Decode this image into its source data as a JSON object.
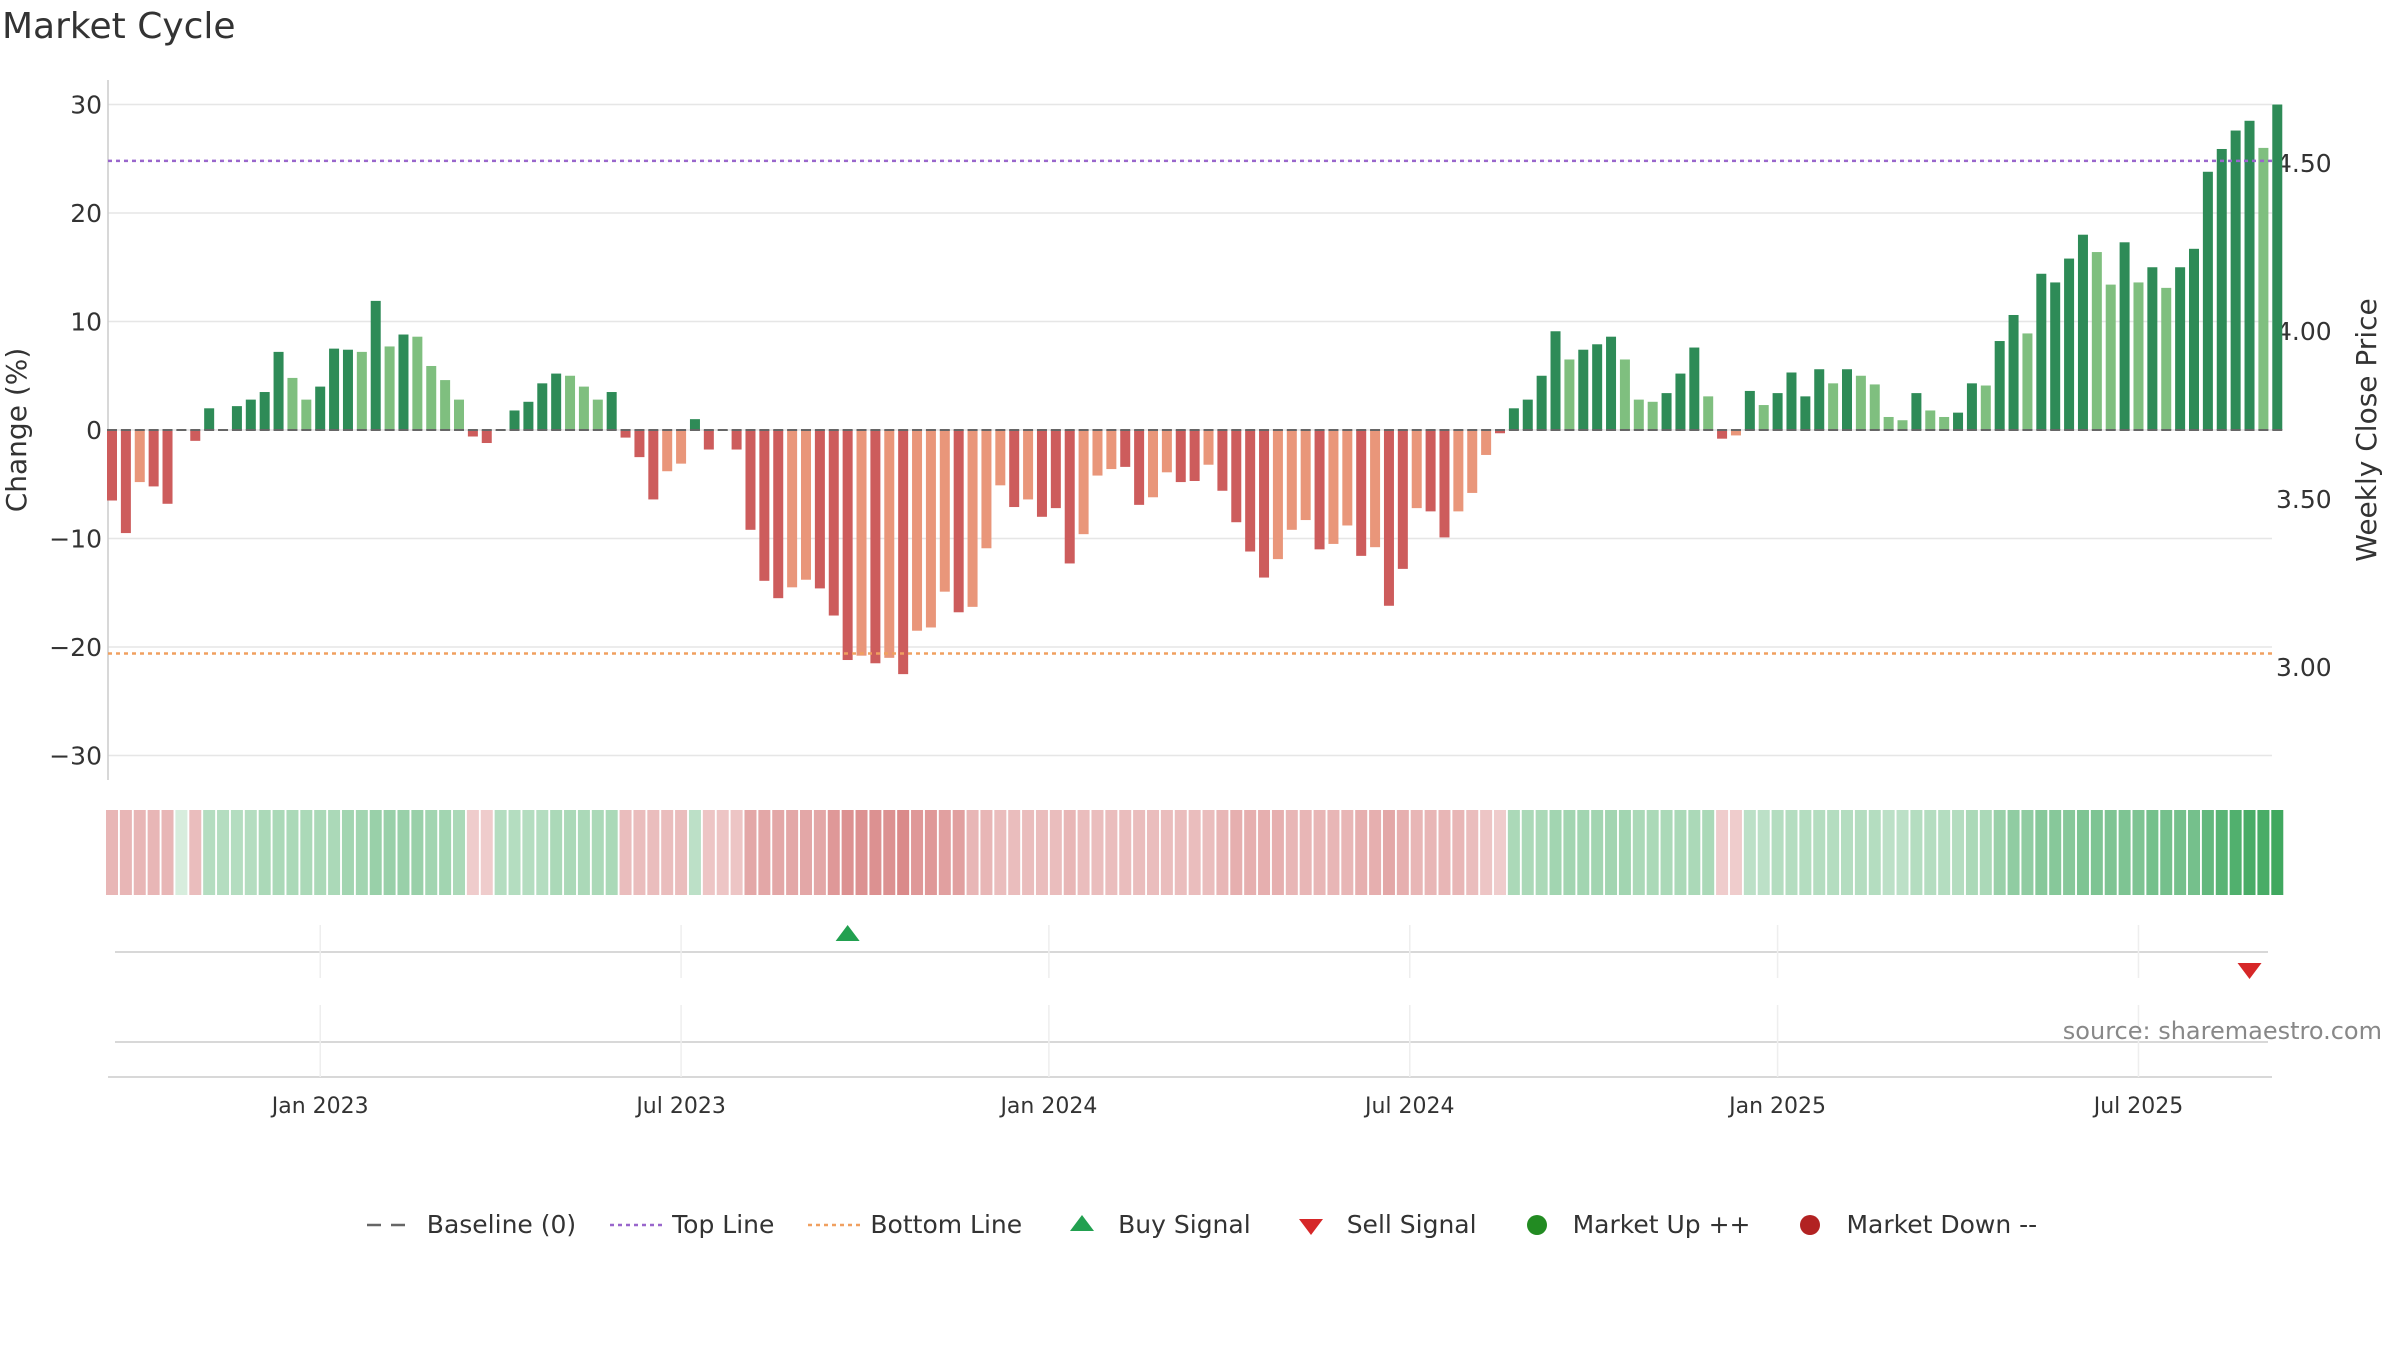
{
  "title": "Market Cycle",
  "source": "source: sharemaestro.com",
  "colors": {
    "up_strong": "#2e8b57",
    "up_light": "#7fbf7f",
    "down_strong": "#cd5c5c",
    "down_light": "#e9967a",
    "top_line": "#9966cc",
    "bottom_line": "#f0a060",
    "baseline": "#666666",
    "buy": "#22a050",
    "sell": "#d62728",
    "market_up": "#228b22",
    "market_down": "#b22222"
  },
  "chart_data": {
    "type": "bar",
    "ylabel_left": "Change (%)",
    "ylabel_right": "Weekly Close Price",
    "ylim": [
      -32,
      32
    ],
    "yticks": [
      -30,
      -20,
      -10,
      0,
      10,
      20,
      30
    ],
    "ytick_labels": [
      "−30",
      "−20",
      "−10",
      "0",
      "10",
      "20",
      "30"
    ],
    "right_ticks": [
      "3.00",
      "3.50",
      "4.00",
      "4.50"
    ],
    "top_line": 24.8,
    "bottom_line": -20.6,
    "x_ticks": [
      "Jan 2023",
      "Jul 2023",
      "Jan 2024",
      "Jul 2024",
      "Jan 2025",
      "Jul 2025"
    ],
    "x_tick_index": [
      15,
      41,
      67.5,
      93.5,
      120,
      146
    ],
    "values": [
      -6.5,
      -9.5,
      -4.8,
      -5.2,
      -6.8,
      0,
      -1.0,
      2.0,
      0,
      2.2,
      2.8,
      3.5,
      7.2,
      4.8,
      2.8,
      4.0,
      7.5,
      7.4,
      7.2,
      11.9,
      7.7,
      8.8,
      8.6,
      5.9,
      4.6,
      2.8,
      -0.6,
      -1.2,
      0,
      1.8,
      2.6,
      4.3,
      5.2,
      5.0,
      4.0,
      2.8,
      3.5,
      -0.7,
      -2.5,
      -6.4,
      -3.8,
      -3.1,
      1.0,
      -1.8,
      0,
      -1.8,
      -9.2,
      -13.9,
      -15.5,
      -14.5,
      -13.8,
      -14.6,
      -17.1,
      -21.2,
      -20.8,
      -21.5,
      -21.0,
      -22.5,
      -18.5,
      -18.2,
      -14.9,
      -16.8,
      -16.3,
      -10.9,
      -5.1,
      -7.1,
      -6.4,
      -8.0,
      -7.2,
      -12.3,
      -9.6,
      -4.2,
      -3.6,
      -3.4,
      -6.9,
      -6.2,
      -3.9,
      -4.8,
      -4.7,
      -3.2,
      -5.6,
      -8.5,
      -11.2,
      -13.6,
      -11.9,
      -9.2,
      -8.3,
      -11.0,
      -10.5,
      -8.8,
      -11.6,
      -10.8,
      -16.2,
      -12.8,
      -7.2,
      -7.5,
      -9.9,
      -7.5,
      -5.8,
      -2.3,
      -0.3,
      2.0,
      2.8,
      5.0,
      9.1,
      6.5,
      7.4,
      7.9,
      8.6,
      6.5,
      2.8,
      2.6,
      3.4,
      5.2,
      7.6,
      3.1,
      -0.8,
      -0.5,
      3.6,
      2.3,
      3.4,
      5.3,
      3.1,
      5.6,
      4.3,
      5.6,
      5.0,
      4.2,
      1.2,
      0.9,
      3.4,
      1.8,
      1.2,
      1.6,
      4.3,
      4.1,
      8.2,
      10.6,
      8.9,
      14.4,
      13.6,
      15.8,
      18.0,
      16.4,
      13.4,
      17.3,
      13.6,
      15.0,
      13.1,
      15.0,
      16.7,
      23.8,
      25.9,
      27.6,
      28.5,
      26.0,
      30.0
    ],
    "shade": [
      1,
      1,
      0,
      1,
      1,
      0,
      1,
      1,
      0,
      1,
      1,
      1,
      1,
      0,
      0,
      1,
      1,
      1,
      0,
      1,
      0,
      1,
      0,
      0,
      0,
      0,
      1,
      1,
      0,
      1,
      1,
      1,
      1,
      0,
      0,
      0,
      1,
      1,
      1,
      1,
      0,
      0,
      1,
      1,
      0,
      1,
      1,
      1,
      1,
      0,
      0,
      1,
      1,
      1,
      0,
      1,
      0,
      1,
      0,
      0,
      0,
      1,
      0,
      0,
      0,
      1,
      0,
      1,
      1,
      1,
      0,
      0,
      0,
      1,
      1,
      0,
      0,
      1,
      1,
      0,
      1,
      1,
      1,
      1,
      0,
      0,
      0,
      1,
      0,
      0,
      1,
      0,
      1,
      1,
      0,
      1,
      1,
      0,
      0,
      0,
      1,
      1,
      1,
      1,
      1,
      0,
      1,
      1,
      1,
      0,
      0,
      0,
      1,
      1,
      1,
      0,
      1,
      0,
      1,
      0,
      1,
      1,
      1,
      1,
      0,
      1,
      0,
      0,
      0,
      0,
      1,
      0,
      0,
      1,
      1,
      0,
      1,
      1,
      0,
      1,
      1,
      1,
      1,
      0,
      0,
      1,
      0,
      1,
      0,
      1,
      1,
      1,
      1,
      1,
      1,
      0,
      1
    ],
    "heat_levels": [
      -0.35,
      -0.35,
      -0.35,
      -0.35,
      -0.35,
      0.05,
      -0.3,
      0.25,
      0.25,
      0.25,
      0.25,
      0.3,
      0.3,
      0.3,
      0.3,
      0.3,
      0.3,
      0.35,
      0.35,
      0.4,
      0.4,
      0.4,
      0.4,
      0.35,
      0.35,
      0.3,
      -0.2,
      -0.2,
      0.25,
      0.25,
      0.25,
      0.25,
      0.3,
      0.3,
      0.3,
      0.3,
      0.3,
      -0.3,
      -0.3,
      -0.3,
      -0.3,
      -0.3,
      0.2,
      -0.25,
      -0.25,
      -0.25,
      -0.45,
      -0.45,
      -0.45,
      -0.45,
      -0.45,
      -0.45,
      -0.55,
      -0.6,
      -0.6,
      -0.6,
      -0.6,
      -0.65,
      -0.55,
      -0.55,
      -0.5,
      -0.5,
      -0.35,
      -0.35,
      -0.3,
      -0.3,
      -0.3,
      -0.3,
      -0.3,
      -0.35,
      -0.3,
      -0.3,
      -0.3,
      -0.3,
      -0.3,
      -0.3,
      -0.3,
      -0.3,
      -0.3,
      -0.3,
      -0.35,
      -0.4,
      -0.4,
      -0.4,
      -0.4,
      -0.35,
      -0.35,
      -0.35,
      -0.35,
      -0.35,
      -0.4,
      -0.4,
      -0.45,
      -0.4,
      -0.35,
      -0.35,
      -0.35,
      -0.35,
      -0.3,
      -0.25,
      -0.2,
      0.3,
      0.3,
      0.3,
      0.35,
      0.35,
      0.35,
      0.35,
      0.35,
      0.35,
      0.3,
      0.3,
      0.3,
      0.3,
      0.3,
      0.3,
      -0.2,
      -0.2,
      0.2,
      0.2,
      0.25,
      0.25,
      0.25,
      0.25,
      0.25,
      0.25,
      0.25,
      0.25,
      0.2,
      0.2,
      0.25,
      0.25,
      0.25,
      0.25,
      0.3,
      0.3,
      0.4,
      0.45,
      0.45,
      0.5,
      0.5,
      0.5,
      0.55,
      0.55,
      0.55,
      0.55,
      0.55,
      0.6,
      0.6,
      0.6,
      0.6,
      0.7,
      0.75,
      0.8,
      0.85,
      0.85,
      0.9
    ],
    "buy_signal_index": 53,
    "sell_signal_index": 154
  },
  "legend": [
    {
      "key": "baseline",
      "label": "Baseline (0)"
    },
    {
      "key": "top",
      "label": "Top Line"
    },
    {
      "key": "bottom",
      "label": "Bottom Line"
    },
    {
      "key": "buy",
      "label": "Buy Signal"
    },
    {
      "key": "sell",
      "label": "Sell Signal"
    },
    {
      "key": "mup",
      "label": "Market Up ++"
    },
    {
      "key": "mdown",
      "label": "Market Down --"
    }
  ]
}
